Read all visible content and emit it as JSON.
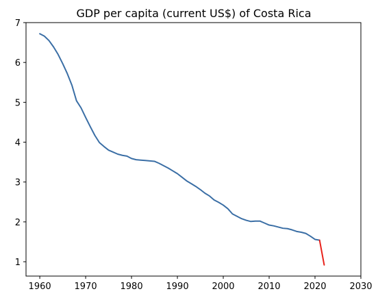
{
  "chart_data": {
    "type": "line",
    "title": "GDP per capita (current US$) of Costa Rica",
    "xlabel": "",
    "ylabel": "",
    "xlim": [
      1957,
      2030
    ],
    "ylim": [
      0.64,
      7.0
    ],
    "x_ticks": [
      1960,
      1970,
      1980,
      1990,
      2000,
      2010,
      2020,
      2030
    ],
    "y_ticks": [
      1,
      2,
      3,
      4,
      5,
      6,
      7
    ],
    "grid": false,
    "legend": "none",
    "series": [
      {
        "color": "#3a6ea5",
        "x": [
          1960,
          1961,
          1962,
          1963,
          1964,
          1965,
          1966,
          1967,
          1968,
          1969,
          1970,
          1971,
          1972,
          1973,
          1974,
          1975,
          1976,
          1977,
          1978,
          1979,
          1980,
          1981,
          1982,
          1983,
          1984,
          1985,
          1986,
          1987,
          1988,
          1989,
          1990,
          1991,
          1992,
          1993,
          1994,
          1995,
          1996,
          1997,
          1998,
          1999,
          2000,
          2001,
          2002,
          2003,
          2004,
          2005,
          2006,
          2007,
          2008,
          2009,
          2010,
          2011,
          2012,
          2013,
          2014,
          2015,
          2016,
          2017,
          2018,
          2019,
          2020,
          2021
        ],
        "y": [
          6.72,
          6.66,
          6.55,
          6.39,
          6.2,
          5.97,
          5.72,
          5.43,
          5.04,
          4.86,
          4.62,
          4.39,
          4.17,
          3.99,
          3.89,
          3.8,
          3.75,
          3.7,
          3.67,
          3.65,
          3.59,
          3.56,
          3.55,
          3.54,
          3.53,
          3.52,
          3.47,
          3.41,
          3.35,
          3.28,
          3.21,
          3.12,
          3.03,
          2.96,
          2.89,
          2.81,
          2.72,
          2.65,
          2.55,
          2.49,
          2.42,
          2.33,
          2.2,
          2.14,
          2.08,
          2.04,
          2.01,
          2.02,
          2.02,
          1.97,
          1.92,
          1.9,
          1.87,
          1.84,
          1.83,
          1.8,
          1.76,
          1.74,
          1.71,
          1.64,
          1.56,
          1.54
        ]
      },
      {
        "color": "#e8221b",
        "x": [
          2021,
          2022
        ],
        "y": [
          1.54,
          0.92
        ]
      }
    ]
  }
}
